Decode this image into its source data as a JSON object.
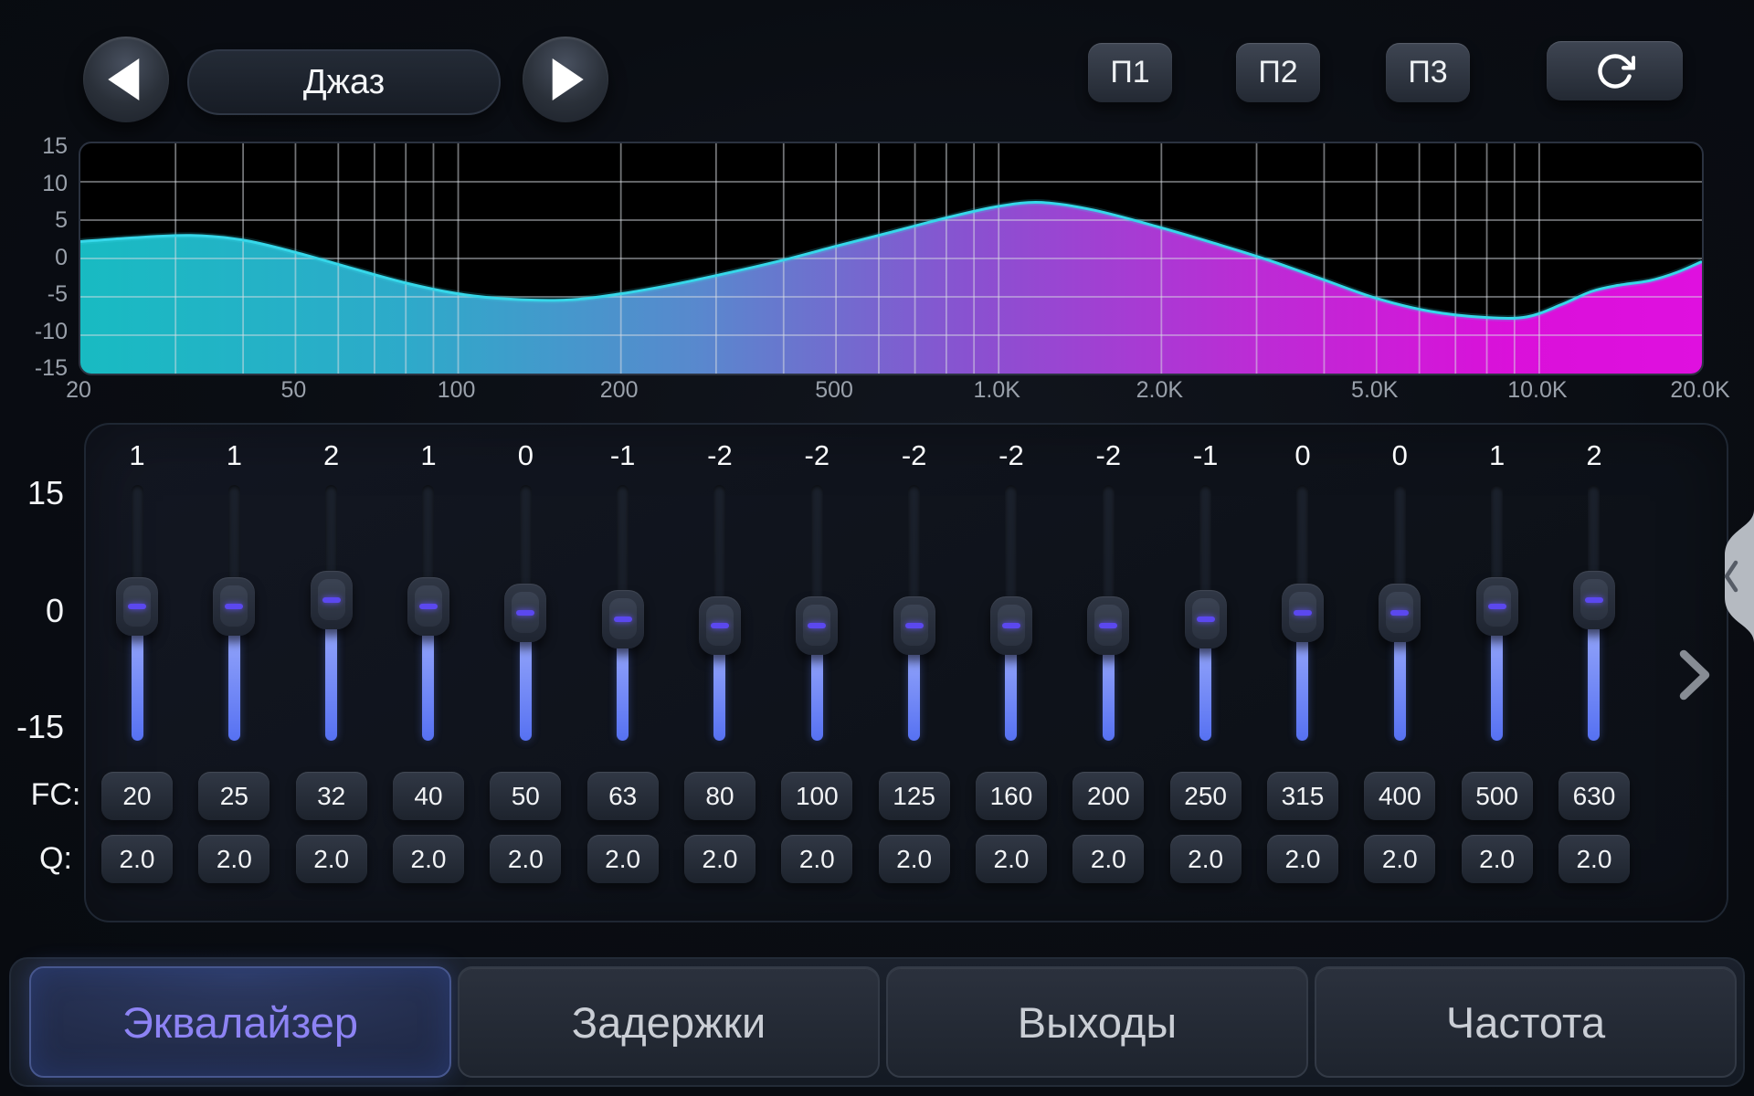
{
  "preset_bar": {
    "preset_name": "Джаз",
    "prev_icon": "left-triangle-icon",
    "next_icon": "right-triangle-icon",
    "memory_buttons": [
      "П1",
      "П2",
      "П3"
    ],
    "reset_icon": "reset-clockwise-icon"
  },
  "chart_data": {
    "type": "area",
    "title": "",
    "x_scale": "log",
    "x_range_hz": [
      20,
      20000
    ],
    "ylim": [
      -15,
      15
    ],
    "grid": true,
    "y_ticks": [
      "15",
      "10",
      "5",
      "0",
      "-5",
      "-10",
      "-15"
    ],
    "x_ticks": [
      {
        "hz": 20,
        "label": "20"
      },
      {
        "hz": 50,
        "label": "50"
      },
      {
        "hz": 100,
        "label": "100"
      },
      {
        "hz": 200,
        "label": "200"
      },
      {
        "hz": 500,
        "label": "500"
      },
      {
        "hz": 1000,
        "label": "1.0K"
      },
      {
        "hz": 2000,
        "label": "2.0K"
      },
      {
        "hz": 5000,
        "label": "5.0K"
      },
      {
        "hz": 10000,
        "label": "10.0K"
      },
      {
        "hz": 20000,
        "label": "20.0K"
      }
    ],
    "series": [
      {
        "name": "eq-frequency-response-db",
        "points": [
          [
            20,
            2.2
          ],
          [
            25,
            2.7
          ],
          [
            32,
            3.0
          ],
          [
            40,
            2.4
          ],
          [
            50,
            0.8
          ],
          [
            63,
            -1.2
          ],
          [
            80,
            -3.2
          ],
          [
            100,
            -4.6
          ],
          [
            125,
            -5.3
          ],
          [
            160,
            -5.4
          ],
          [
            200,
            -4.6
          ],
          [
            250,
            -3.4
          ],
          [
            315,
            -1.9
          ],
          [
            400,
            -0.2
          ],
          [
            500,
            1.6
          ],
          [
            630,
            3.4
          ],
          [
            800,
            5.3
          ],
          [
            1000,
            6.8
          ],
          [
            1200,
            7.3
          ],
          [
            1500,
            6.3
          ],
          [
            2000,
            4.0
          ],
          [
            2500,
            2.0
          ],
          [
            3150,
            -0.2
          ],
          [
            4000,
            -2.8
          ],
          [
            5000,
            -5.2
          ],
          [
            6300,
            -6.9
          ],
          [
            8000,
            -7.7
          ],
          [
            9500,
            -7.6
          ],
          [
            11000,
            -6.0
          ],
          [
            12500,
            -4.3
          ],
          [
            14000,
            -3.5
          ],
          [
            16000,
            -2.9
          ],
          [
            18000,
            -1.8
          ],
          [
            20000,
            -0.4
          ]
        ]
      }
    ],
    "fill_gradient": [
      "#1ac9d1",
      "#31b7d9",
      "#5f93dd",
      "#9457e0",
      "#c930e5",
      "#ea12ea",
      "#f011f0"
    ],
    "line_color": "#36d7e9"
  },
  "equalizer": {
    "scale_labels": [
      "15",
      "0",
      "-15"
    ],
    "fc_row_label": "FC:",
    "q_row_label": "Q:",
    "bands": [
      {
        "gain": "1",
        "fc": "20",
        "q": "2.0"
      },
      {
        "gain": "1",
        "fc": "25",
        "q": "2.0"
      },
      {
        "gain": "2",
        "fc": "32",
        "q": "2.0"
      },
      {
        "gain": "1",
        "fc": "40",
        "q": "2.0"
      },
      {
        "gain": "0",
        "fc": "50",
        "q": "2.0"
      },
      {
        "gain": "-1",
        "fc": "63",
        "q": "2.0"
      },
      {
        "gain": "-2",
        "fc": "80",
        "q": "2.0"
      },
      {
        "gain": "-2",
        "fc": "100",
        "q": "2.0"
      },
      {
        "gain": "-2",
        "fc": "125",
        "q": "2.0"
      },
      {
        "gain": "-2",
        "fc": "160",
        "q": "2.0"
      },
      {
        "gain": "-2",
        "fc": "200",
        "q": "2.0"
      },
      {
        "gain": "-1",
        "fc": "250",
        "q": "2.0"
      },
      {
        "gain": "0",
        "fc": "315",
        "q": "2.0"
      },
      {
        "gain": "0",
        "fc": "400",
        "q": "2.0"
      },
      {
        "gain": "1",
        "fc": "500",
        "q": "2.0"
      },
      {
        "gain": "2",
        "fc": "630",
        "q": "2.0"
      }
    ]
  },
  "side_controls": {
    "collapse_icon": "chevron-left-icon",
    "next_bank_icon": "chevron-right-icon"
  },
  "tabs": [
    {
      "label": "Эквалайзер",
      "active": true
    },
    {
      "label": "Задержки",
      "active": false
    },
    {
      "label": "Выходы",
      "active": false
    },
    {
      "label": "Частота",
      "active": false
    }
  ],
  "colors": {
    "accent_blue": "#5671f2",
    "accent_purple": "#5b48ef",
    "active_tab_text": "#8d83f4",
    "curve_line": "#36d7e9",
    "tick_text": "#9aa1ab"
  }
}
